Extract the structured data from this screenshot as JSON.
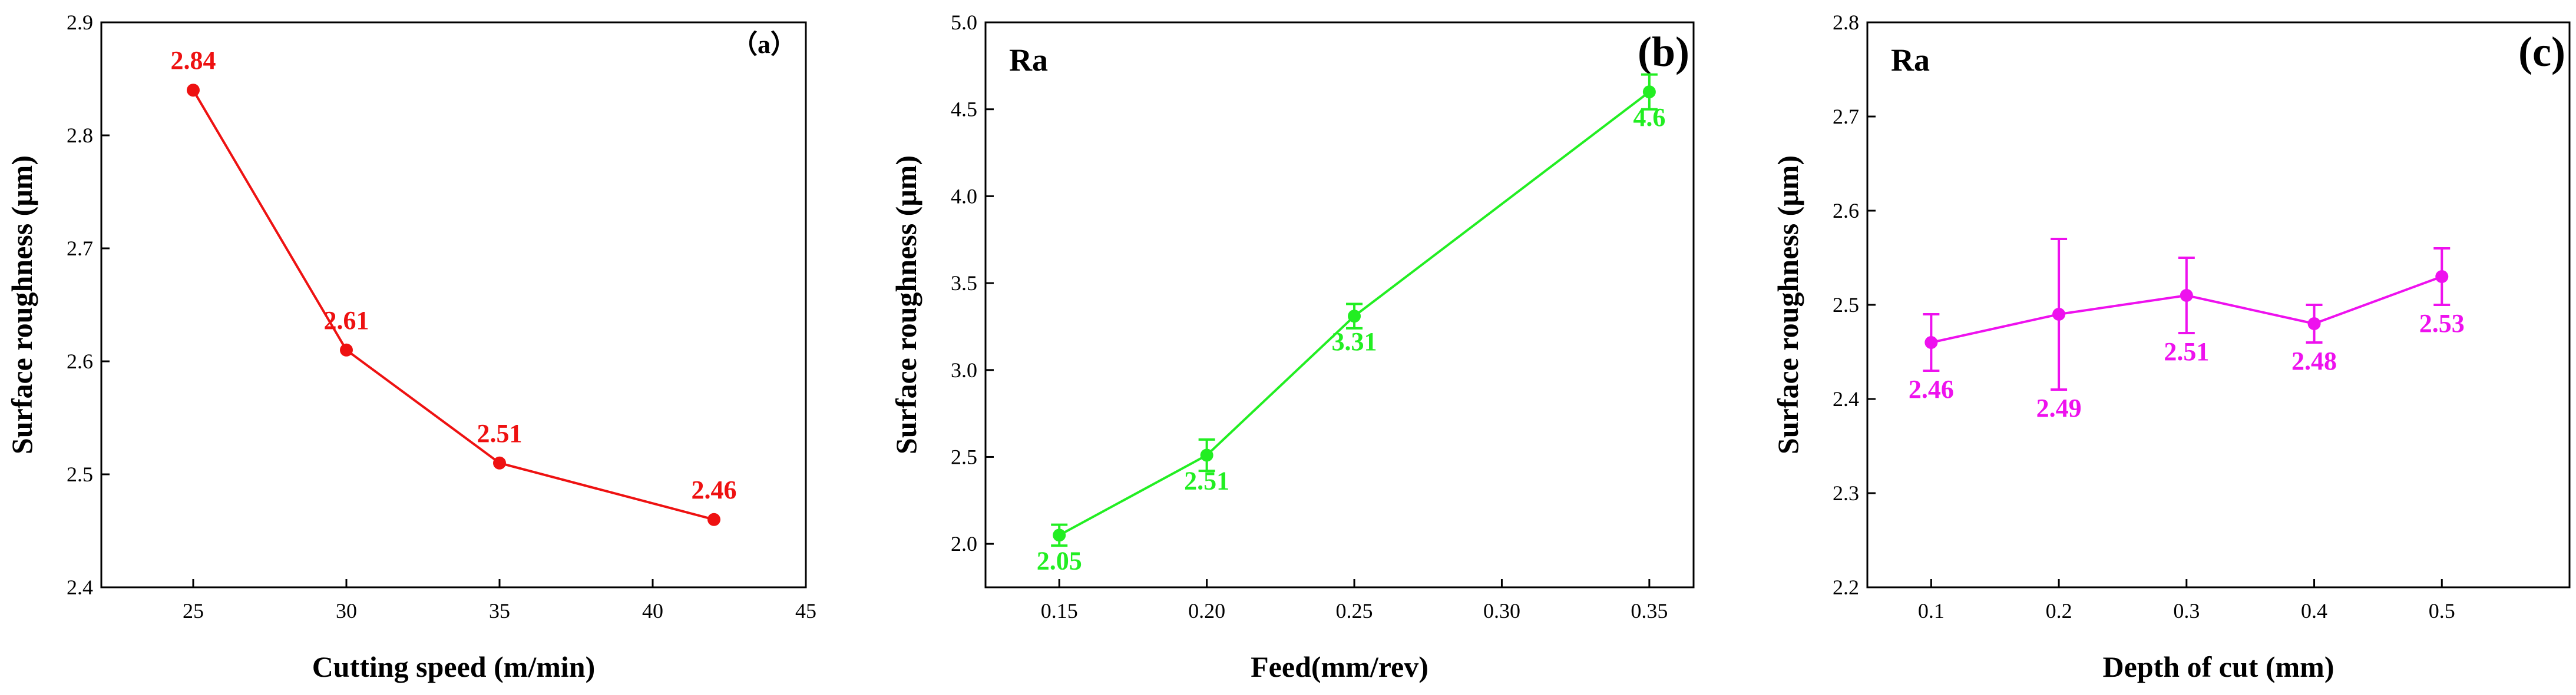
{
  "chart_data": [
    {
      "type": "line",
      "panel_label": "（a）",
      "corner_label": "",
      "xlabel": "Cutting speed (m/min)",
      "ylabel": "Surface roughness (μm)",
      "xlim": [
        22,
        45
      ],
      "ylim": [
        2.4,
        2.9
      ],
      "xticks": [
        "25",
        "30",
        "35",
        "40",
        "45"
      ],
      "yticks": [
        "2.4",
        "2.5",
        "2.6",
        "2.7",
        "2.8",
        "2.9"
      ],
      "color": "#ee1111",
      "x": [
        25,
        30,
        35,
        42
      ],
      "y": [
        2.84,
        2.61,
        2.51,
        2.46
      ],
      "err": [],
      "labels": [
        "2.84",
        "2.61",
        "2.51",
        "2.46"
      ],
      "label_position": "above"
    },
    {
      "type": "line",
      "panel_label": "(b)",
      "corner_label": "Ra",
      "xlabel": "Feed(mm/rev)",
      "ylabel": "Surface roughness (μm)",
      "xlim": [
        0.125,
        0.365
      ],
      "ylim": [
        1.75,
        5.0
      ],
      "xticks": [
        "0.15",
        "0.20",
        "0.25",
        "0.30",
        "0.35"
      ],
      "yticks": [
        "2.0",
        "2.5",
        "3.0",
        "3.5",
        "4.0",
        "4.5",
        "5.0"
      ],
      "color": "#22ee22",
      "x": [
        0.15,
        0.2,
        0.25,
        0.35
      ],
      "y": [
        2.05,
        2.51,
        3.31,
        4.6
      ],
      "err": [
        0.06,
        0.09,
        0.07,
        0.1
      ],
      "labels": [
        "2.05",
        "2.51",
        "3.31",
        "4.6"
      ],
      "label_position": "below"
    },
    {
      "type": "line",
      "panel_label": "(c)",
      "corner_label": "Ra",
      "xlabel": "Depth of cut (mm)",
      "ylabel": "Surface roughness (μm)",
      "xlim": [
        0.05,
        0.6
      ],
      "ylim": [
        2.2,
        2.8
      ],
      "xticks": [
        "0.1",
        "0.2",
        "0.3",
        "0.4",
        "0.5"
      ],
      "yticks": [
        "2.2",
        "2.3",
        "2.4",
        "2.5",
        "2.6",
        "2.7",
        "2.8"
      ],
      "color": "#ee11ee",
      "x": [
        0.1,
        0.2,
        0.3,
        0.4,
        0.5
      ],
      "y": [
        2.46,
        2.49,
        2.51,
        2.48,
        2.53
      ],
      "err": [
        0.03,
        0.08,
        0.04,
        0.02,
        0.03
      ],
      "labels": [
        "2.46",
        "2.49",
        "2.51",
        "2.48",
        "2.53"
      ],
      "label_position": "below"
    }
  ]
}
